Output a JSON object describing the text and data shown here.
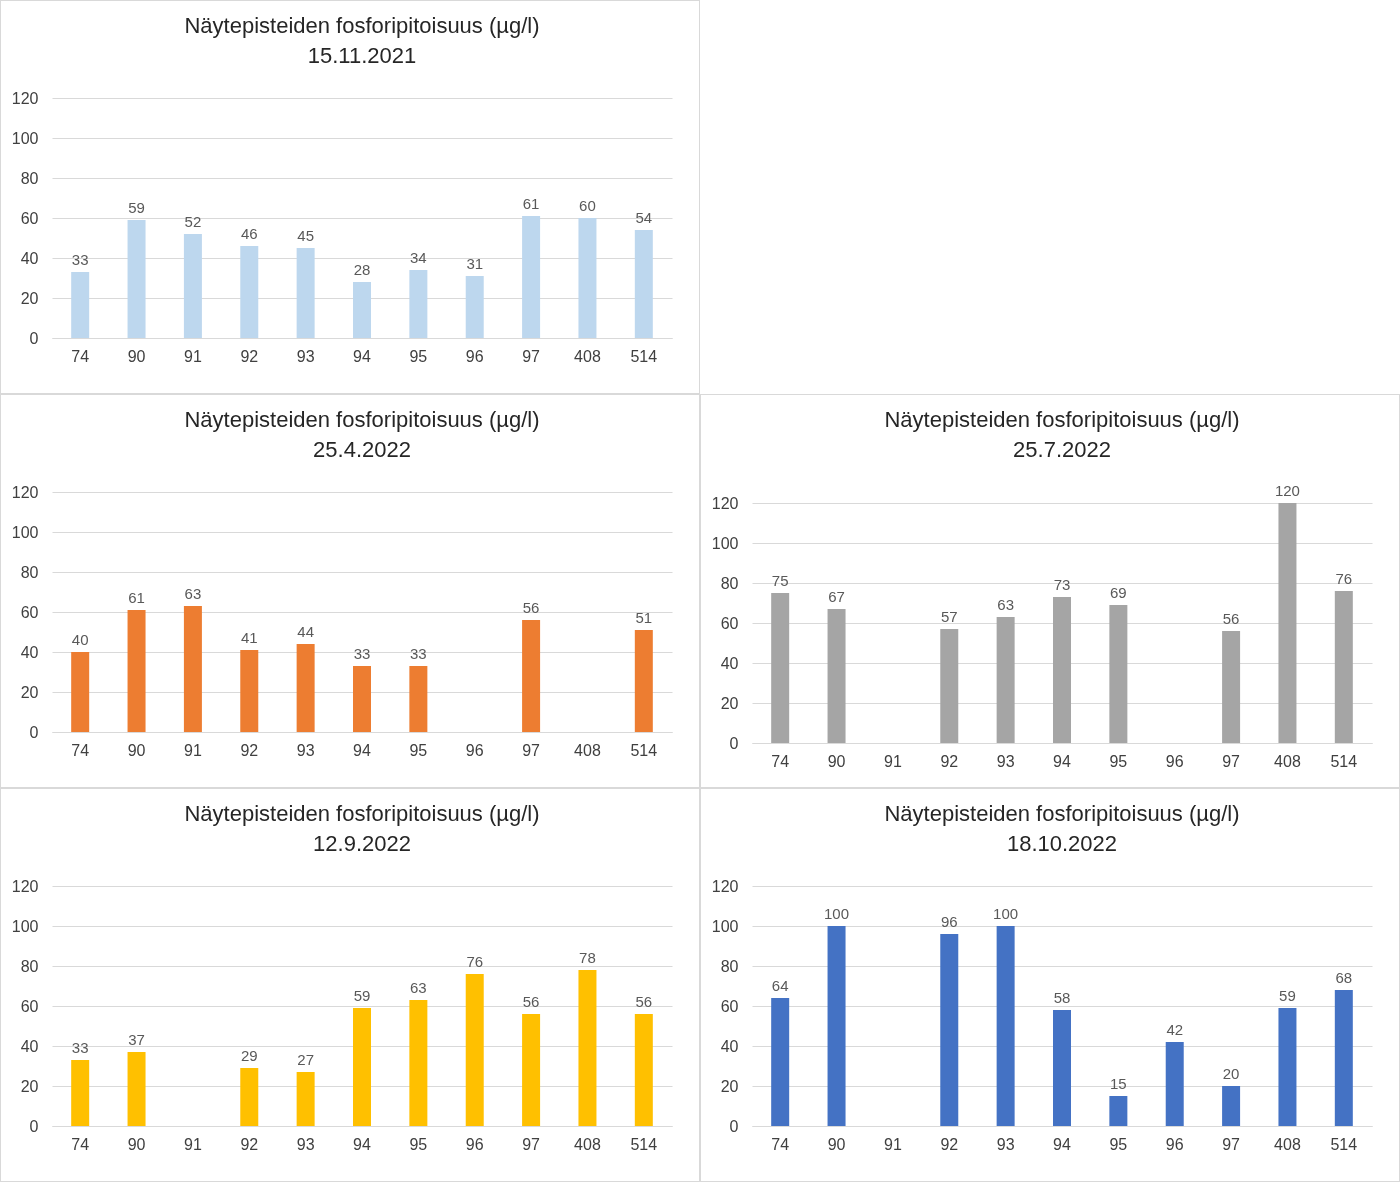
{
  "chart_data": [
    {
      "type": "bar",
      "title": "Näytepisteiden fosforipitoisuus (µg/l)",
      "subtitle": "15.11.2021",
      "categories": [
        "74",
        "90",
        "91",
        "92",
        "93",
        "94",
        "95",
        "96",
        "97",
        "408",
        "514"
      ],
      "series": [
        {
          "color": "#bdd7ee",
          "values": [
            33,
            59,
            52,
            46,
            45,
            28,
            34,
            31,
            61,
            60,
            54
          ]
        }
      ],
      "ylim": [
        0,
        120
      ],
      "yticks": [
        0,
        20,
        40,
        60,
        80,
        100,
        120
      ],
      "grid": "y",
      "data_labels": true
    },
    {
      "type": "bar",
      "title": "Näytepisteiden fosforipitoisuus (µg/l)",
      "subtitle": "25.4.2022",
      "categories": [
        "74",
        "90",
        "91",
        "92",
        "93",
        "94",
        "95",
        "96",
        "97",
        "408",
        "514"
      ],
      "series": [
        {
          "color": "#ed7d31",
          "values": [
            40,
            61,
            63,
            41,
            44,
            33,
            33,
            null,
            56,
            null,
            51
          ]
        }
      ],
      "ylim": [
        0,
        120
      ],
      "yticks": [
        0,
        20,
        40,
        60,
        80,
        100,
        120
      ],
      "grid": "y",
      "data_labels": true
    },
    {
      "type": "bar",
      "title": "Näytepisteiden fosforipitoisuus (µg/l)",
      "subtitle": "25.7.2022",
      "categories": [
        "74",
        "90",
        "91",
        "92",
        "93",
        "94",
        "95",
        "96",
        "97",
        "408",
        "514"
      ],
      "series": [
        {
          "color": "#a5a5a5",
          "values": [
            75,
            67,
            null,
            57,
            63,
            73,
            69,
            null,
            56,
            120,
            76
          ]
        }
      ],
      "ylim": [
        0,
        120
      ],
      "yticks": [
        0,
        20,
        40,
        60,
        80,
        100,
        120
      ],
      "grid": "y",
      "data_labels": true
    },
    {
      "type": "bar",
      "title": "Näytepisteiden fosforipitoisuus (µg/l)",
      "subtitle": "12.9.2022",
      "categories": [
        "74",
        "90",
        "91",
        "92",
        "93",
        "94",
        "95",
        "96",
        "97",
        "408",
        "514"
      ],
      "series": [
        {
          "color": "#ffc000",
          "values": [
            33,
            37,
            null,
            29,
            27,
            59,
            63,
            76,
            56,
            78,
            56
          ]
        }
      ],
      "ylim": [
        0,
        120
      ],
      "yticks": [
        0,
        20,
        40,
        60,
        80,
        100,
        120
      ],
      "grid": "y",
      "data_labels": true
    },
    {
      "type": "bar",
      "title": "Näytepisteiden fosforipitoisuus (µg/l)",
      "subtitle": "18.10.2022",
      "categories": [
        "74",
        "90",
        "91",
        "92",
        "93",
        "94",
        "95",
        "96",
        "97",
        "408",
        "514"
      ],
      "series": [
        {
          "color": "#4472c4",
          "values": [
            64,
            100,
            null,
            96,
            100,
            58,
            15,
            42,
            20,
            59,
            68
          ]
        }
      ],
      "ylim": [
        0,
        120
      ],
      "yticks": [
        0,
        20,
        40,
        60,
        80,
        100,
        120
      ],
      "grid": "y",
      "data_labels": true
    }
  ]
}
